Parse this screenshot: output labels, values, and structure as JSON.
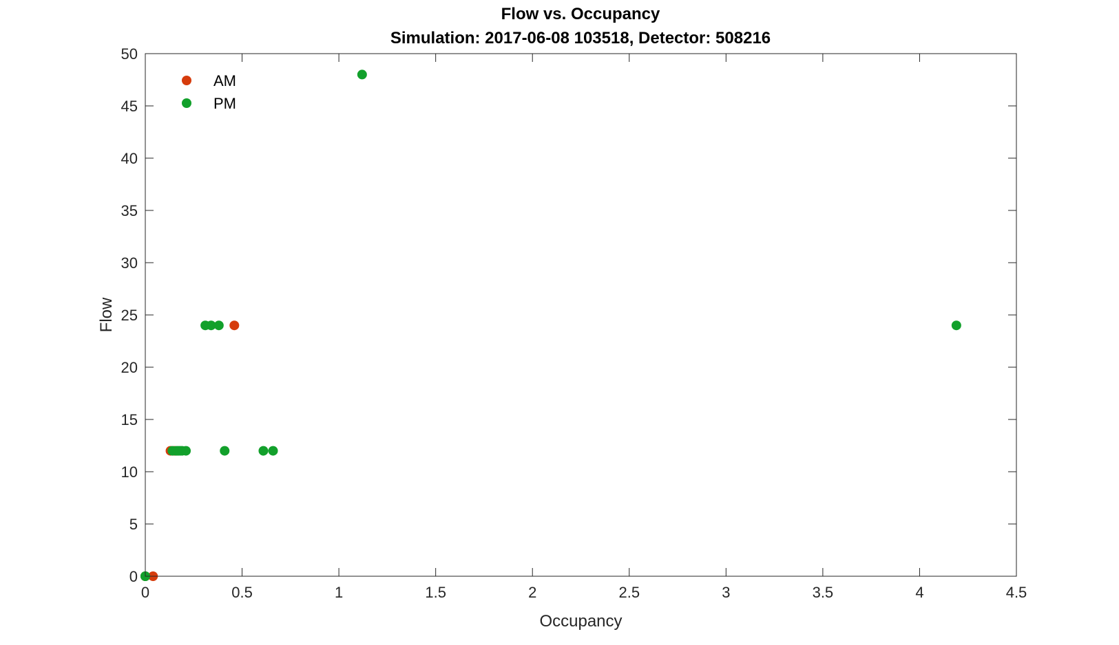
{
  "chart_data": {
    "type": "scatter",
    "title": "Flow vs. Occupancy",
    "subtitle": "Simulation:  2017-06-08 103518,  Detector:  508216",
    "xlabel": "Occupancy",
    "ylabel": "Flow",
    "xlim": [
      0,
      4.5
    ],
    "ylim": [
      0,
      50
    ],
    "xticks": [
      0,
      0.5,
      1,
      1.5,
      2,
      2.5,
      3,
      3.5,
      4,
      4.5
    ],
    "xtick_labels": [
      "0",
      "0.5",
      "1",
      "1.5",
      "2",
      "2.5",
      "3",
      "3.5",
      "4",
      "4.5"
    ],
    "yticks": [
      0,
      5,
      10,
      15,
      20,
      25,
      30,
      35,
      40,
      45,
      50
    ],
    "ytick_labels": [
      "0",
      "5",
      "10",
      "15",
      "20",
      "25",
      "30",
      "35",
      "40",
      "45",
      "50"
    ],
    "grid": false,
    "legend": "top-left",
    "series": [
      {
        "name": "AM",
        "color": "#d63c0c",
        "points": [
          {
            "x": 0.0,
            "y": 0
          },
          {
            "x": 0.04,
            "y": 0
          },
          {
            "x": 0.13,
            "y": 12
          },
          {
            "x": 0.15,
            "y": 12
          },
          {
            "x": 0.46,
            "y": 24
          }
        ]
      },
      {
        "name": "PM",
        "color": "#12a02b",
        "points": [
          {
            "x": 0.0,
            "y": 0
          },
          {
            "x": 0.0,
            "y": 0
          },
          {
            "x": 0.14,
            "y": 12
          },
          {
            "x": 0.16,
            "y": 12
          },
          {
            "x": 0.17,
            "y": 12
          },
          {
            "x": 0.18,
            "y": 12
          },
          {
            "x": 0.19,
            "y": 12
          },
          {
            "x": 0.21,
            "y": 12
          },
          {
            "x": 0.41,
            "y": 12
          },
          {
            "x": 0.61,
            "y": 12
          },
          {
            "x": 0.66,
            "y": 12
          },
          {
            "x": 0.31,
            "y": 24
          },
          {
            "x": 0.34,
            "y": 24
          },
          {
            "x": 0.38,
            "y": 24
          },
          {
            "x": 1.12,
            "y": 48
          },
          {
            "x": 4.19,
            "y": 24
          }
        ]
      }
    ]
  }
}
